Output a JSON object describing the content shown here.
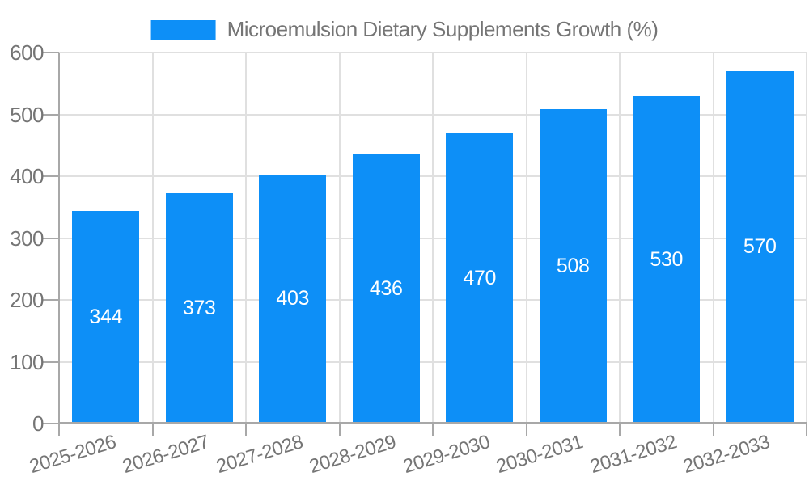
{
  "chart_data": {
    "type": "bar",
    "legend": "Microemulsion Dietary Supplements Growth (%)",
    "categories": [
      "2025-2026",
      "2026-2027",
      "2027-2028",
      "2028-2029",
      "2029-2030",
      "2030-2031",
      "2031-2032",
      "2032-2033"
    ],
    "values": [
      344,
      373,
      403,
      436,
      470,
      508,
      530,
      570
    ],
    "title": "",
    "xlabel": "",
    "ylabel": "",
    "ylim": [
      0,
      600
    ],
    "yticks": [
      0,
      100,
      200,
      300,
      400,
      500,
      600
    ],
    "grid": true,
    "legend_position": "top-center",
    "colors": {
      "bar": "#0d8ff7",
      "value_label": "#ffffff",
      "axis": "#a8a8a8",
      "grid": "#e0e0e0",
      "text": "#757575"
    }
  }
}
